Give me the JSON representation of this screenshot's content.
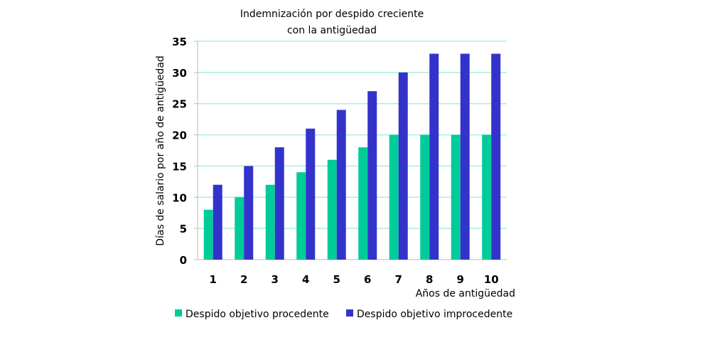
{
  "chart_data": {
    "type": "bar",
    "title": [
      "Indemnización por despido creciente",
      "con la antigüedad"
    ],
    "xlabel": "Años de antigüedad",
    "ylabel": "Días de salario por año de antigüedad",
    "categories": [
      "1",
      "2",
      "3",
      "4",
      "5",
      "6",
      "7",
      "8",
      "9",
      "10"
    ],
    "ylim": [
      0,
      35
    ],
    "yticks": [
      0,
      5,
      10,
      15,
      20,
      25,
      30,
      35
    ],
    "grid": true,
    "legend": "bottom",
    "series": [
      {
        "name": "Despido objetivo procedente",
        "color": "#00CC99",
        "values": [
          8,
          10,
          12,
          14,
          16,
          18,
          20,
          20,
          20,
          20
        ]
      },
      {
        "name": "Despido objetivo improcedente",
        "color": "#3333CC",
        "values": [
          12,
          15,
          18,
          21,
          24,
          27,
          30,
          33,
          33,
          33
        ]
      }
    ]
  }
}
